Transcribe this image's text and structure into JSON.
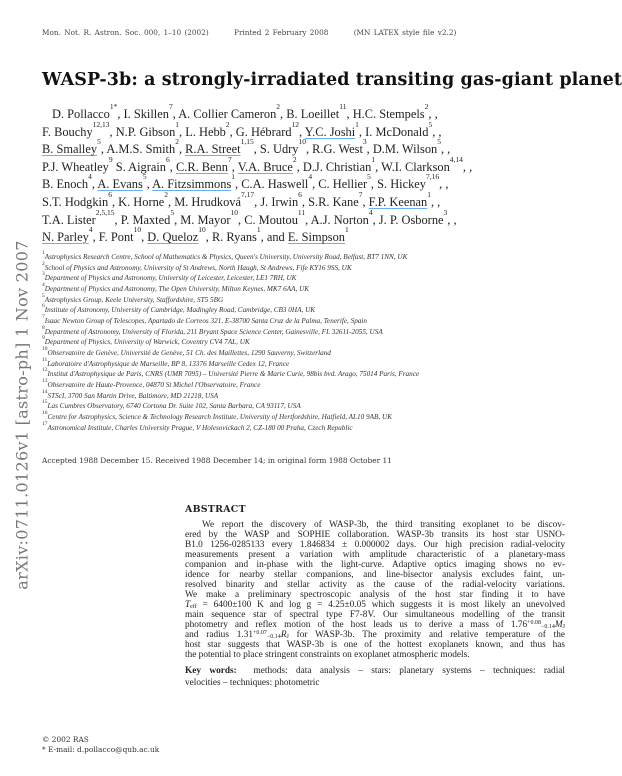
{
  "header": {
    "journal": "Mon. Not. R. Astron. Soc. 000, 1–10 (2002)",
    "printed": "Printed 2 February 2008",
    "style": "(MN LATEX style file v2.2)"
  },
  "arxiv_id": "arXiv:0711.0126v1  [astro-ph]  1 Nov 2007",
  "title": "WASP-3b: a strongly-irradiated transiting gas-giant planet",
  "author_lines": [
    [
      {
        "name": "D. Pollacco",
        "sup": "1*"
      },
      {
        "name": "I. Skillen",
        "sup": "7"
      },
      {
        "name": "A. Collier Cameron",
        "sup": "2"
      },
      {
        "name": "B. Loeillet",
        "sup": "11"
      },
      {
        "name": "H.C. Stempels",
        "sup": "2"
      }
    ],
    [
      {
        "name": "F. Bouchy",
        "sup": "12,13"
      },
      {
        "name": "N.P. Gibson",
        "sup": "1"
      },
      {
        "name": "L. Hebb",
        "sup": "2"
      },
      {
        "name": "G. Hébrard",
        "sup": "12"
      },
      {
        "name": "Y.C. Joshi",
        "sup": "1",
        "link": true
      },
      {
        "name": "I. McDonald",
        "sup": "5"
      }
    ],
    [
      {
        "name": "B. Smalley",
        "sup": "5",
        "link": true
      },
      {
        "name": "A.M.S. Smith",
        "sup": "2"
      },
      {
        "name": "R.A. Street",
        "sup": "1,15",
        "link": true
      },
      {
        "name": "S. Udry",
        "sup": "10"
      },
      {
        "name": "R.G. West",
        "sup": "3"
      },
      {
        "name": "D.M. Wilson",
        "sup": "5"
      }
    ],
    [
      {
        "name": "P.J. Wheatley",
        "sup": "9",
        "nocomma": true
      },
      {
        "name": "S. Aigrain",
        "sup": "6"
      },
      {
        "name": "C.R. Benn",
        "sup": "7",
        "link": true
      },
      {
        "name": "V.A. Bruce",
        "sup": "2",
        "link": true
      },
      {
        "name": "D.J. Christian",
        "sup": "1"
      },
      {
        "name": "W.I. Clarkson",
        "sup": "4,14"
      }
    ],
    [
      {
        "name": "B. Enoch",
        "sup": "4"
      },
      {
        "name": "A. Evans",
        "sup": "5",
        "link": true
      },
      {
        "name": "A. Fitzsimmons",
        "sup": "1",
        "link": true
      },
      {
        "name": "C.A. Haswell",
        "sup": "4"
      },
      {
        "name": "C. Hellier",
        "sup": "5"
      },
      {
        "name": "S. Hickey",
        "sup": "7,16"
      }
    ],
    [
      {
        "name": "S.T. Hodgkin",
        "sup": "6"
      },
      {
        "name": "K. Horne",
        "sup": "2"
      },
      {
        "name": "M. Hrudková",
        "sup": "7,17"
      },
      {
        "name": "J. Irwin",
        "sup": "6"
      },
      {
        "name": "S.R. Kane",
        "sup": "7"
      },
      {
        "name": "F.P. Keenan",
        "sup": "1",
        "link": true
      }
    ],
    [
      {
        "name": "T.A. Lister",
        "sup": "2,5,15"
      },
      {
        "name": "P. Maxted",
        "sup": "5"
      },
      {
        "name": "M. Mayor",
        "sup": "10"
      },
      {
        "name": "C. Moutou",
        "sup": "11"
      },
      {
        "name": "A.J. Norton",
        "sup": "4"
      },
      {
        "name": "J. P. Osborne",
        "sup": "3"
      }
    ],
    [
      {
        "name": "N. Parley",
        "sup": "4",
        "link": true
      },
      {
        "name": "F. Pont",
        "sup": "10"
      },
      {
        "name": "D. Queloz",
        "sup": "10",
        "link": true
      },
      {
        "name": "R. Ryans",
        "sup": "1",
        "and_next": true
      },
      {
        "name": "E. Simpson",
        "sup": "1",
        "link": true,
        "last": true
      }
    ]
  ],
  "and_word": "and",
  "affiliations": [
    {
      "n": "1",
      "text": "Astrophysics Research Centre, School of Mathematics & Physics, Queen's University, University Road, Belfast, BT7 1NN, UK"
    },
    {
      "n": "2",
      "text": "School of Physics and Astronomy, University of St Andrews, North Haugh, St Andrews, Fife KY16 9SS, UK"
    },
    {
      "n": "3",
      "text": "Department of Physics and Astronomy, University of Leicester, Leicester, LE1 7RH, UK"
    },
    {
      "n": "4",
      "text": "Department of Physics and Astronomy, The Open University, Milton Keynes, MK7 6AA, UK"
    },
    {
      "n": "5",
      "text": "Astrophysics Group, Keele University, Staffordshire, ST5 5BG"
    },
    {
      "n": "6",
      "text": "Institute of Astronomy, University of Cambridge, Madingley Road, Cambridge, CB3 0HA, UK"
    },
    {
      "n": "7",
      "text": "Isaac Newton Group of Telescopes, Apartado de Correos 321, E-38700 Santa Cruz de la Palma, Tenerife, Spain"
    },
    {
      "n": "8",
      "text": "Department of Astronomy, University of Florida, 211 Bryant Space Science Center, Gainesville, FL 32611-2055, USA"
    },
    {
      "n": "9",
      "text": "Department of Physics, University of Warwick, Coventry CV4 7AL, UK"
    },
    {
      "n": "10",
      "text": "Observatoire de Genève, Université de Genève, 51 Ch. des Maillettes, 1290 Sauverny, Switzerland"
    },
    {
      "n": "11",
      "text": "Laboratoire d'Astrophysique de Marseille, BP 8, 13376 Marseille Cedex 12, France"
    },
    {
      "n": "12",
      "text": "Institut d'Astrophysique de Paris, CNRS (UMR 7095) – Université Pierre & Marie Curie, 98bis bvd. Arago, 75014 Paris, France"
    },
    {
      "n": "13",
      "text": "Observatoire de Haute-Provence, 04870 St Michel l'Observatoire, France"
    },
    {
      "n": "14",
      "text": "STScI, 3700 San Martin Drive, Baltimore, MD 21218, USA"
    },
    {
      "n": "15",
      "text": "Las Cumbres Observatory, 6740 Cortona Dr. Suite 102, Santa Barbara, CA 93117, USA"
    },
    {
      "n": "16",
      "text": "Centre for Astrophysics, Science & Technology Research Institute, University of Hertfordshire, Hatfield, AL10 9AB, UK"
    },
    {
      "n": "17",
      "text": "Astronomical Institute, Charles University Prague, V Holesovickach 2, CZ-180 00 Praha, Czech Republic"
    }
  ],
  "accepted": "Accepted 1988 December 15. Received 1988 December 14; in original form 1988 October 11",
  "abstract": {
    "heading": "ABSTRACT",
    "lines": [
      "We report the discovery of WASP-3b, the third transiting exoplanet to be discov-",
      "ered by the WASP and SOPHIE collaboration. WASP-3b transits its host star USNO-",
      "B1.0 1256-0285133 every 1.846834 ± 0.000002 days. Our high precision radial-velocity",
      "measurements present a variation with amplitude characteristic of a planetary-mass",
      "companion and in-phase with the light-curve. Adaptive optics imaging shows no ev-",
      "idence for nearby stellar companions, and line-bisector analysis excludes faint, un-",
      "resolved binarity and stellar activity as the cause of the radial-velocity variations.",
      "We make a preliminary spectroscopic analysis of the host star finding it to have"
    ],
    "teff_line": {
      "t": "T",
      "sub": "eff",
      "rest": " = 6400±100 K and log g = 4.25±0.05 which suggests it is most likely an unevolved"
    },
    "line_10": "main sequence star of spectral type F7-8V. Our simultaneous modelling of the transit",
    "mass_line": {
      "pre": "photometry and reflex motion of the host leads us to derive a mass of 1.76",
      "sup": "+0.08",
      "sub": "−0.14",
      "post": "M",
      "unit_sub": "J"
    },
    "radius_line": {
      "pre": "and radius 1.31",
      "sup": "+0.07",
      "sub": "−0.14",
      "post": "R",
      "unit_sub": "J",
      "rest": " for WASP-3b. The proximity and relative temperature of the"
    },
    "lines_end": [
      "host star suggests that WASP-3b is one of the hottest exoplanets known, and thus has",
      "the potential to place stringent constraints on exoplanet atmospheric models."
    ]
  },
  "keywords": {
    "label": "Key words:",
    "line1": "methods: data analysis – stars: planetary systems – techniques: radial",
    "line2": "velocities – techniques: photometric"
  },
  "footer": {
    "copyright": "© 2002 RAS",
    "email": "* E-mail: d.pollacco@qub.ac.uk"
  },
  "colors": {
    "link_underline": "#6ab0f0",
    "text": "#222222"
  }
}
